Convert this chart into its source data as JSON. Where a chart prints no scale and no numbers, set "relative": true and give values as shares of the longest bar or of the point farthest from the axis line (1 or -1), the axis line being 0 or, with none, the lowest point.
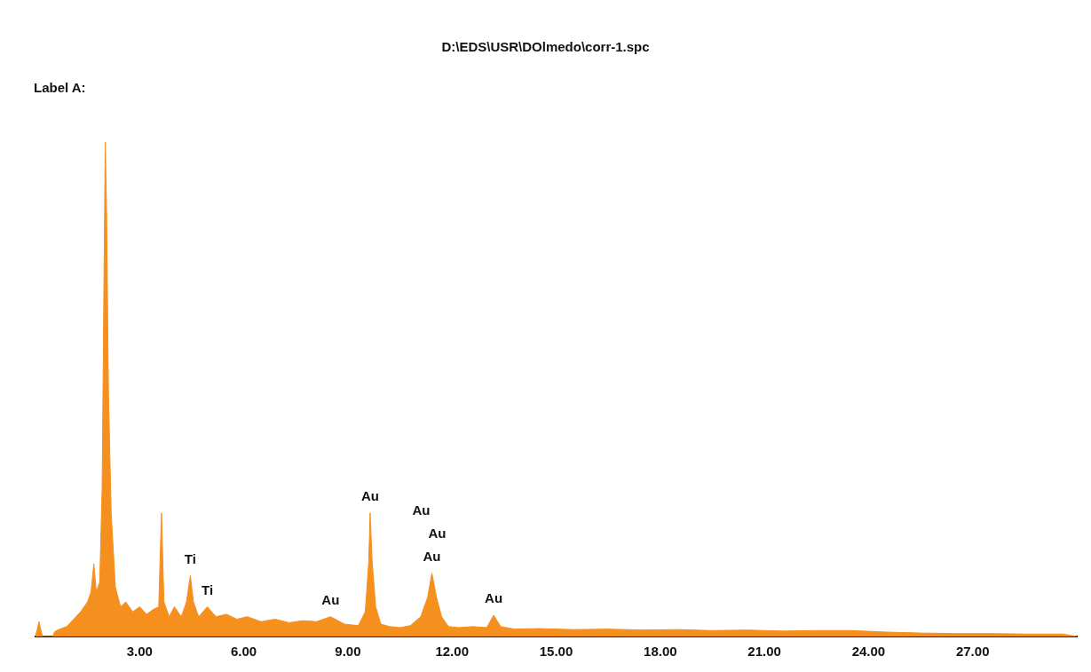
{
  "chart_data": {
    "type": "area",
    "title": "D:\\EDS\\USR\\DOlmedo\\corr-1.spc",
    "relative": true,
    "grid": false,
    "legend": false,
    "xlim": [
      0,
      30
    ],
    "xticks": [
      {
        "value": 3,
        "label": "3.00"
      },
      {
        "value": 6,
        "label": "6.00"
      },
      {
        "value": 9,
        "label": "9.00"
      },
      {
        "value": 12,
        "label": "12.00"
      },
      {
        "value": 15,
        "label": "15.00"
      },
      {
        "value": 18,
        "label": "18.00"
      },
      {
        "value": 21,
        "label": "21.00"
      },
      {
        "value": 24,
        "label": "24.00"
      },
      {
        "value": 27,
        "label": "27.00"
      }
    ],
    "x": [
      0,
      0.1,
      0.2,
      0.5,
      0.55,
      0.7,
      0.9,
      1.1,
      1.3,
      1.5,
      1.6,
      1.68,
      1.75,
      1.85,
      1.92,
      1.97,
      2.01,
      2.05,
      2.1,
      2.18,
      2.3,
      2.45,
      2.6,
      2.8,
      3.0,
      3.2,
      3.4,
      3.55,
      3.63,
      3.7,
      3.85,
      4.0,
      4.2,
      4.35,
      4.46,
      4.55,
      4.7,
      4.95,
      5.2,
      5.5,
      5.8,
      6.1,
      6.5,
      6.9,
      7.3,
      7.7,
      8.1,
      8.5,
      8.9,
      9.3,
      9.5,
      9.6,
      9.64,
      9.7,
      9.8,
      9.95,
      10.2,
      10.5,
      10.8,
      11.1,
      11.3,
      11.42,
      11.55,
      11.7,
      11.9,
      12.2,
      12.6,
      13.0,
      13.2,
      13.4,
      13.8,
      14.5,
      15.5,
      16.5,
      17.5,
      18.5,
      19.5,
      20.5,
      21.5,
      22.5,
      23.5,
      24.5,
      25.5,
      26.5,
      27.5,
      28.5,
      29.6,
      30
    ],
    "series": [
      {
        "color": "#f5901f",
        "values": [
          0,
          0.03,
          0,
          0,
          0.01,
          0.015,
          0.02,
          0.035,
          0.05,
          0.07,
          0.09,
          0.147,
          0.09,
          0.11,
          0.3,
          0.7,
          1,
          0.85,
          0.5,
          0.25,
          0.1,
          0.06,
          0.07,
          0.05,
          0.06,
          0.045,
          0.055,
          0.06,
          0.25,
          0.07,
          0.04,
          0.06,
          0.04,
          0.07,
          0.123,
          0.07,
          0.04,
          0.06,
          0.04,
          0.045,
          0.035,
          0.04,
          0.03,
          0.035,
          0.028,
          0.032,
          0.03,
          0.04,
          0.025,
          0.022,
          0.05,
          0.15,
          0.25,
          0.15,
          0.06,
          0.025,
          0.02,
          0.018,
          0.022,
          0.04,
          0.08,
          0.128,
          0.08,
          0.04,
          0.02,
          0.018,
          0.02,
          0.018,
          0.043,
          0.02,
          0.015,
          0.016,
          0.014,
          0.015,
          0.013,
          0.014,
          0.012,
          0.013,
          0.011,
          0.012,
          0.012,
          0.009,
          0.007,
          0.006,
          0.006,
          0.005,
          0.005,
          0
        ]
      }
    ],
    "annotations": [
      "Label A:",
      {
        "text": "Ti",
        "x": 4.46,
        "y": 0.123
      },
      {
        "text": "Ti",
        "x": 4.95,
        "y": 0.06
      },
      {
        "text": "Au",
        "x": 8.5,
        "y": 0.04
      },
      {
        "text": "Au",
        "x": 9.64,
        "y": 0.25
      },
      {
        "text": "Au",
        "x": 11.42,
        "y": 0.128
      },
      "Au",
      "Au",
      {
        "text": "Au",
        "x": 13.2,
        "y": 0.043
      }
    ]
  }
}
